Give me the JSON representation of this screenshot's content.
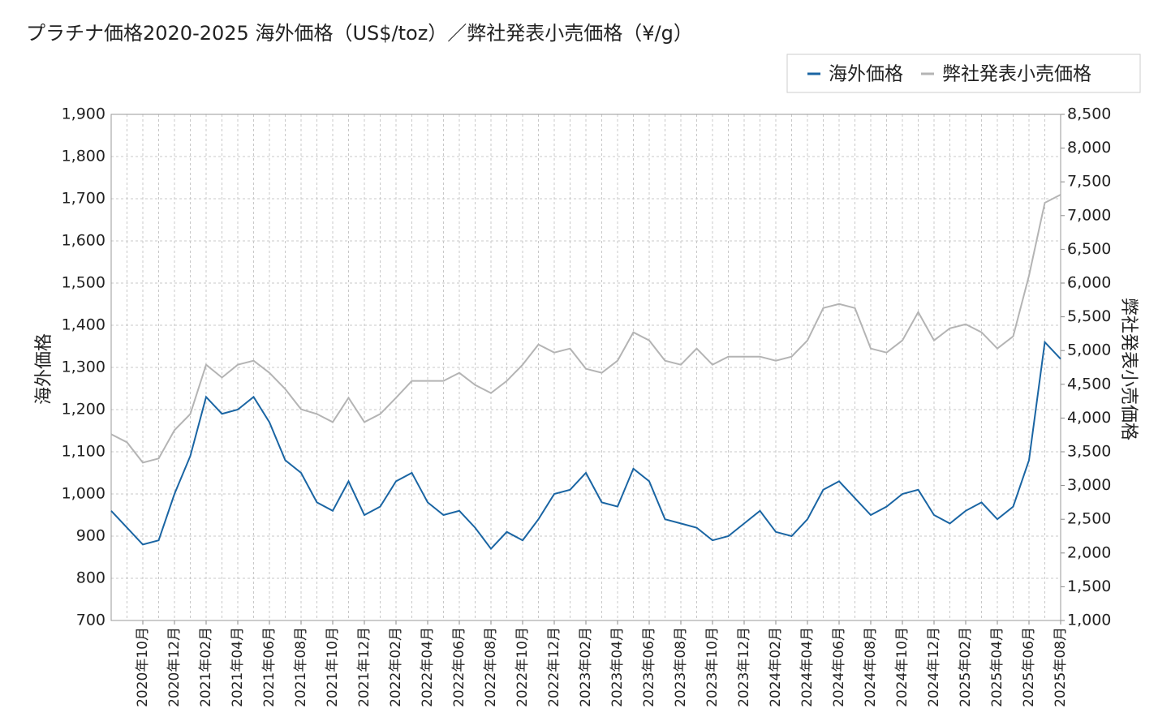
{
  "chart_data": {
    "type": "line",
    "title": "プラチナ価格2020-2025 海外価格（US$/toz）／弊社発表小売価格（¥/g）",
    "ylabel": "海外価格",
    "y2label": "弊社発表小売価格",
    "categories": [
      null,
      null,
      "2020年10月",
      null,
      "2020年12月",
      null,
      "2021年02月",
      null,
      "2021年04月",
      null,
      "2021年06月",
      null,
      "2021年08月",
      null,
      "2021年10月",
      null,
      "2021年12月",
      null,
      "2022年02月",
      null,
      "2022年04月",
      null,
      "2022年06月",
      null,
      "2022年08月",
      null,
      "2022年10月",
      null,
      "2022年12月",
      null,
      "2023年02月",
      null,
      "2023年04月",
      null,
      "2023年06月",
      null,
      "2023年08月",
      null,
      "2023年10月",
      null,
      "2023年12月",
      null,
      "2024年02月",
      null,
      "2024年04月",
      null,
      "2024年06月",
      null,
      "2024年08月",
      null,
      "2024年10月",
      null,
      "2024年12月",
      null,
      "2025年02月",
      null,
      "2025年04月",
      null,
      "2025年06月",
      null,
      "2025年08月"
    ],
    "series": [
      {
        "name": "海外価格",
        "color": "#1a65a3",
        "axis": "y",
        "values": [
          960,
          920,
          880,
          890,
          1000,
          1090,
          1230,
          1190,
          1200,
          1230,
          1170,
          1080,
          1050,
          980,
          960,
          1030,
          950,
          970,
          1030,
          1050,
          980,
          950,
          960,
          920,
          870,
          910,
          890,
          940,
          1000,
          1010,
          1050,
          980,
          970,
          1060,
          1030,
          940,
          930,
          920,
          890,
          900,
          930,
          960,
          910,
          900,
          940,
          1010,
          1030,
          990,
          950,
          970,
          1000,
          1010,
          950,
          930,
          960,
          980,
          940,
          970,
          1080,
          1360,
          1320
        ]
      },
      {
        "name": "弊社発表小売価格",
        "color": "#b4b4b4",
        "axis": "y2",
        "values": [
          3760,
          3640,
          3340,
          3400,
          3820,
          4060,
          4790,
          4600,
          4790,
          4850,
          4670,
          4430,
          4130,
          4060,
          3940,
          4300,
          3940,
          4060,
          4300,
          4550,
          4550,
          4550,
          4670,
          4490,
          4370,
          4550,
          4790,
          5090,
          4970,
          5030,
          4730,
          4670,
          4850,
          5270,
          5150,
          4850,
          4790,
          5030,
          4790,
          4910,
          4910,
          4910,
          4850,
          4910,
          5150,
          5630,
          5690,
          5630,
          5030,
          4970,
          5150,
          5570,
          5150,
          5330,
          5390,
          5270,
          5030,
          5210,
          6110,
          7190,
          7310
        ]
      }
    ],
    "ylim": [
      700,
      1900
    ],
    "yticks": [
      700,
      800,
      900,
      {
        "value": 1000,
        "label": "1,000"
      },
      {
        "value": 1100,
        "label": "1,100"
      },
      {
        "value": 1200,
        "label": "1,200"
      },
      {
        "value": 1300,
        "label": "1,300"
      },
      {
        "value": 1400,
        "label": "1,400"
      },
      {
        "value": 1500,
        "label": "1,500"
      },
      {
        "value": 1600,
        "label": "1,600"
      },
      {
        "value": 1700,
        "label": "1,700"
      },
      {
        "value": 1800,
        "label": "1,800"
      },
      {
        "value": 1900,
        "label": "1,900"
      }
    ],
    "y2lim": [
      1000,
      8500
    ],
    "y2ticks": [
      {
        "value": 1000,
        "label": "1,000"
      },
      {
        "value": 1500,
        "label": "1,500"
      },
      {
        "value": 2000,
        "label": "2,000"
      },
      {
        "value": 2500,
        "label": "2,500"
      },
      {
        "value": 3000,
        "label": "3,000"
      },
      {
        "value": 3500,
        "label": "3,500"
      },
      {
        "value": 4000,
        "label": "4,000"
      },
      {
        "value": 4500,
        "label": "4,500"
      },
      {
        "value": 5000,
        "label": "5,000"
      },
      {
        "value": 5500,
        "label": "5,500"
      },
      {
        "value": 6000,
        "label": "6,000"
      },
      {
        "value": 6500,
        "label": "6,500"
      },
      {
        "value": 7000,
        "label": "7,000"
      },
      {
        "value": 7500,
        "label": "7,500"
      },
      {
        "value": 8000,
        "label": "8,000"
      },
      {
        "value": 8500,
        "label": "8,500"
      }
    ],
    "grid": true
  }
}
